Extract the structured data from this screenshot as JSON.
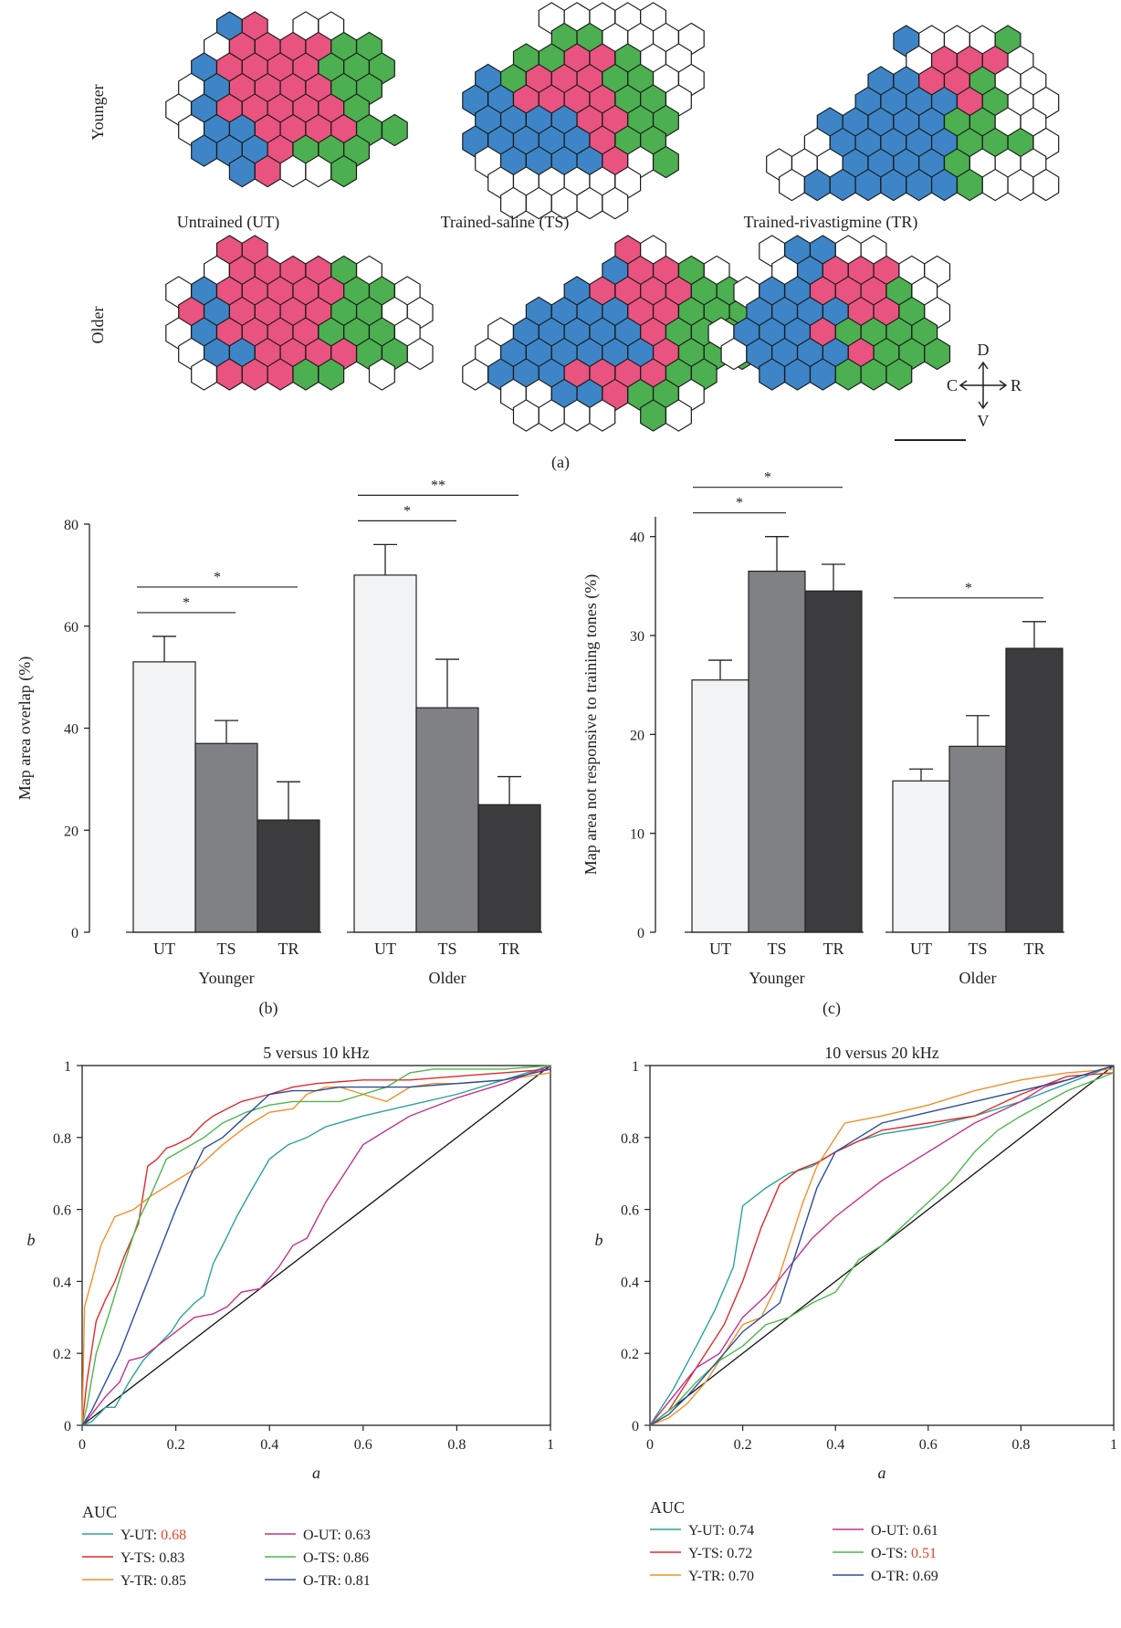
{
  "panel_a": {
    "row_labels": [
      "Younger",
      "Older"
    ],
    "column_labels": [
      "Untrained (UT)",
      "Trained-saline (TS)",
      "Trained-rivastigmine (TR)"
    ],
    "orientation": {
      "up": "D",
      "down": "V",
      "left": "C",
      "right": "R"
    },
    "caption": "(a)",
    "colors": {
      "blue": "#3d85c6",
      "pink": "#e8537f",
      "green": "#4caf50",
      "white": "#ffffff"
    }
  },
  "captions": {
    "b": "(b)",
    "c": "(c)"
  },
  "chart_data": [
    {
      "id": "b",
      "type": "bar",
      "ylabel": "Map area overlap (%)",
      "ylim": [
        0,
        80
      ],
      "yticks": [
        0,
        20,
        40,
        60,
        80
      ],
      "groups": [
        "Younger",
        "Older"
      ],
      "categories": [
        "UT",
        "TS",
        "TR"
      ],
      "colors": [
        "#f2f3f5",
        "#808184",
        "#3c3c3e"
      ],
      "values": [
        [
          53,
          37,
          22
        ],
        [
          70,
          44,
          25
        ]
      ],
      "errors": [
        [
          5,
          4.5,
          7.5
        ],
        [
          6,
          9.5,
          5.5
        ]
      ],
      "significance": [
        {
          "group": 0,
          "from": 0,
          "to": 1,
          "label": "*"
        },
        {
          "group": 0,
          "from": 0,
          "to": 2,
          "label": "*"
        },
        {
          "group": 1,
          "from": 0,
          "to": 1,
          "label": "*"
        },
        {
          "group": 1,
          "from": 0,
          "to": 2,
          "label": "**"
        }
      ]
    },
    {
      "id": "c",
      "type": "bar",
      "ylabel": "Map area not responsive to training tones (%)",
      "ylim": [
        0,
        42
      ],
      "yticks": [
        0,
        10,
        20,
        30,
        40
      ],
      "groups": [
        "Younger",
        "Older"
      ],
      "categories": [
        "UT",
        "TS",
        "TR"
      ],
      "colors": [
        "#f2f3f5",
        "#808184",
        "#3c3c3e"
      ],
      "values": [
        [
          25.5,
          36.5,
          34.5
        ],
        [
          15.3,
          18.8,
          28.7
        ]
      ],
      "errors": [
        [
          2,
          3.5,
          2.7
        ],
        [
          1.2,
          3.1,
          2.7
        ]
      ],
      "significance": [
        {
          "group": 0,
          "from": 0,
          "to": 1,
          "label": "*"
        },
        {
          "group": 0,
          "from": 0,
          "to": 2,
          "label": "*"
        },
        {
          "group": 1,
          "from": 0,
          "to": 2,
          "label": "*"
        }
      ]
    },
    {
      "id": "d",
      "type": "line",
      "title": "5 versus 10 kHz",
      "xlabel": "a",
      "ylabel": "b",
      "xlim": [
        0,
        1
      ],
      "ylim": [
        0,
        1
      ],
      "xticks": [
        "0",
        "0.2",
        "0.4",
        "0.6",
        "0.8",
        "1"
      ],
      "yticks": [
        "0",
        "0.2",
        "0.4",
        "0.6",
        "0.8",
        "1"
      ],
      "legend_title": "AUC",
      "series": [
        {
          "name": "Y-UT",
          "auc": "0.68",
          "auc_color": "#e0442b",
          "color": "#2aa39a",
          "x": [
            0,
            0.02,
            0.05,
            0.07,
            0.1,
            0.13,
            0.16,
            0.19,
            0.21,
            0.24,
            0.26,
            0.28,
            0.3,
            0.33,
            0.36,
            0.4,
            0.44,
            0.48,
            0.52,
            0.6,
            0.7,
            0.8,
            0.9,
            1.0
          ],
          "y": [
            0,
            0.01,
            0.05,
            0.05,
            0.12,
            0.18,
            0.22,
            0.26,
            0.3,
            0.34,
            0.36,
            0.45,
            0.5,
            0.58,
            0.65,
            0.74,
            0.78,
            0.8,
            0.83,
            0.86,
            0.89,
            0.92,
            0.96,
            1.0
          ]
        },
        {
          "name": "Y-TS",
          "color": "#e02b2b",
          "auc": "0.83",
          "x": [
            0,
            0.01,
            0.03,
            0.05,
            0.07,
            0.09,
            0.12,
            0.14,
            0.16,
            0.18,
            0.2,
            0.23,
            0.26,
            0.28,
            0.31,
            0.34,
            0.37,
            0.4,
            0.45,
            0.5,
            0.6,
            0.7,
            0.8,
            0.9,
            1.0
          ],
          "y": [
            0,
            0.12,
            0.29,
            0.35,
            0.4,
            0.47,
            0.56,
            0.72,
            0.74,
            0.77,
            0.78,
            0.8,
            0.84,
            0.86,
            0.88,
            0.9,
            0.91,
            0.92,
            0.94,
            0.95,
            0.96,
            0.96,
            0.97,
            0.98,
            0.99
          ]
        },
        {
          "name": "Y-TR",
          "color": "#f0902a",
          "auc": "0.85",
          "x": [
            0,
            0.005,
            0.02,
            0.04,
            0.07,
            0.11,
            0.15,
            0.2,
            0.25,
            0.3,
            0.35,
            0.4,
            0.45,
            0.48,
            0.52,
            0.55,
            0.6,
            0.65,
            0.7,
            0.75,
            0.8,
            0.9,
            1.0
          ],
          "y": [
            0,
            0.33,
            0.4,
            0.5,
            0.58,
            0.6,
            0.64,
            0.68,
            0.72,
            0.78,
            0.83,
            0.87,
            0.88,
            0.92,
            0.94,
            0.94,
            0.92,
            0.9,
            0.94,
            0.95,
            0.95,
            0.96,
            0.98
          ]
        },
        {
          "name": "O-UT",
          "color": "#c2338c",
          "auc": "0.63",
          "x": [
            0,
            0.02,
            0.05,
            0.08,
            0.1,
            0.13,
            0.16,
            0.2,
            0.24,
            0.28,
            0.31,
            0.34,
            0.38,
            0.42,
            0.45,
            0.48,
            0.52,
            0.56,
            0.6,
            0.65,
            0.7,
            0.8,
            0.9,
            1.0
          ],
          "y": [
            0,
            0.03,
            0.08,
            0.12,
            0.18,
            0.19,
            0.22,
            0.26,
            0.3,
            0.31,
            0.33,
            0.37,
            0.38,
            0.44,
            0.5,
            0.52,
            0.62,
            0.7,
            0.78,
            0.82,
            0.86,
            0.91,
            0.95,
            1.0
          ]
        },
        {
          "name": "O-TS",
          "color": "#4cb84c",
          "auc": "0.86",
          "x": [
            0,
            0.01,
            0.03,
            0.06,
            0.09,
            0.12,
            0.15,
            0.18,
            0.22,
            0.26,
            0.3,
            0.35,
            0.4,
            0.45,
            0.5,
            0.55,
            0.6,
            0.65,
            0.7,
            0.75,
            0.8,
            0.9,
            1.0
          ],
          "y": [
            0,
            0.05,
            0.2,
            0.32,
            0.45,
            0.57,
            0.65,
            0.74,
            0.77,
            0.8,
            0.84,
            0.87,
            0.89,
            0.9,
            0.9,
            0.9,
            0.92,
            0.94,
            0.98,
            0.99,
            0.99,
            0.99,
            1.0
          ]
        },
        {
          "name": "O-TR",
          "color": "#2a4e9c",
          "auc": "0.81",
          "x": [
            0,
            0.02,
            0.05,
            0.08,
            0.11,
            0.14,
            0.17,
            0.2,
            0.23,
            0.26,
            0.3,
            0.35,
            0.4,
            0.45,
            0.5,
            0.55,
            0.6,
            0.7,
            0.8,
            0.9,
            1.0
          ],
          "y": [
            0,
            0.04,
            0.12,
            0.2,
            0.3,
            0.4,
            0.5,
            0.6,
            0.69,
            0.77,
            0.8,
            0.86,
            0.92,
            0.93,
            0.93,
            0.94,
            0.94,
            0.94,
            0.95,
            0.96,
            0.99
          ]
        }
      ]
    },
    {
      "id": "e",
      "type": "line",
      "title": "10 versus 20 kHz",
      "xlabel": "a",
      "ylabel": "b",
      "xlim": [
        0,
        1
      ],
      "ylim": [
        0,
        1
      ],
      "xticks": [
        "0",
        "0.2",
        "0.4",
        "0.6",
        "0.8",
        "1"
      ],
      "yticks": [
        "0",
        "0.2",
        "0.4",
        "0.6",
        "0.8",
        "1"
      ],
      "legend_title": "AUC",
      "series": [
        {
          "name": "Y-UT",
          "color": "#2aa39a",
          "auc": "0.74",
          "x": [
            0,
            0.05,
            0.1,
            0.14,
            0.18,
            0.2,
            0.25,
            0.3,
            0.35,
            0.4,
            0.45,
            0.5,
            0.6,
            0.7,
            0.8,
            0.9,
            1.0
          ],
          "y": [
            0,
            0.1,
            0.22,
            0.32,
            0.44,
            0.61,
            0.66,
            0.7,
            0.72,
            0.76,
            0.79,
            0.81,
            0.83,
            0.86,
            0.9,
            0.95,
            1.0
          ]
        },
        {
          "name": "Y-TS",
          "color": "#e02b2b",
          "auc": "0.72",
          "x": [
            0,
            0.04,
            0.08,
            0.12,
            0.16,
            0.2,
            0.24,
            0.28,
            0.32,
            0.36,
            0.4,
            0.45,
            0.5,
            0.6,
            0.7,
            0.8,
            0.9,
            1.0
          ],
          "y": [
            0,
            0.04,
            0.12,
            0.2,
            0.28,
            0.4,
            0.55,
            0.67,
            0.71,
            0.73,
            0.76,
            0.79,
            0.82,
            0.84,
            0.86,
            0.92,
            0.97,
            0.98
          ]
        },
        {
          "name": "Y-TR",
          "color": "#f0902a",
          "auc": "0.70",
          "x": [
            0,
            0.04,
            0.08,
            0.12,
            0.16,
            0.2,
            0.24,
            0.27,
            0.3,
            0.33,
            0.36,
            0.39,
            0.42,
            0.5,
            0.6,
            0.7,
            0.8,
            0.9,
            1.0
          ],
          "y": [
            0,
            0.02,
            0.06,
            0.12,
            0.2,
            0.28,
            0.3,
            0.38,
            0.5,
            0.62,
            0.72,
            0.78,
            0.84,
            0.86,
            0.89,
            0.93,
            0.96,
            0.98,
            0.99
          ]
        },
        {
          "name": "O-UT",
          "color": "#c2338c",
          "auc": "0.61",
          "x": [
            0,
            0.05,
            0.1,
            0.15,
            0.2,
            0.25,
            0.3,
            0.35,
            0.4,
            0.45,
            0.5,
            0.55,
            0.6,
            0.65,
            0.7,
            0.75,
            0.8,
            0.85,
            0.9,
            0.95,
            1.0
          ],
          "y": [
            0,
            0.08,
            0.16,
            0.2,
            0.3,
            0.36,
            0.44,
            0.52,
            0.58,
            0.63,
            0.68,
            0.72,
            0.76,
            0.8,
            0.84,
            0.87,
            0.9,
            0.94,
            0.96,
            0.98,
            1.0
          ]
        },
        {
          "name": "O-TS",
          "color": "#4cb84c",
          "auc": "0.51",
          "auc_color": "#e0442b",
          "x": [
            0,
            0.05,
            0.1,
            0.15,
            0.2,
            0.25,
            0.3,
            0.35,
            0.4,
            0.45,
            0.5,
            0.55,
            0.6,
            0.65,
            0.7,
            0.75,
            0.8,
            0.9,
            1.0
          ],
          "y": [
            0,
            0.05,
            0.12,
            0.18,
            0.22,
            0.28,
            0.3,
            0.34,
            0.37,
            0.46,
            0.5,
            0.56,
            0.62,
            0.68,
            0.76,
            0.82,
            0.86,
            0.93,
            0.98
          ]
        },
        {
          "name": "O-TR",
          "color": "#2a4e9c",
          "auc": "0.69",
          "x": [
            0,
            0.04,
            0.08,
            0.12,
            0.16,
            0.2,
            0.24,
            0.28,
            0.32,
            0.36,
            0.4,
            0.45,
            0.5,
            0.6,
            0.7,
            0.8,
            0.9,
            1.0
          ],
          "y": [
            0,
            0.03,
            0.08,
            0.14,
            0.2,
            0.26,
            0.3,
            0.34,
            0.5,
            0.66,
            0.76,
            0.8,
            0.84,
            0.87,
            0.9,
            0.93,
            0.96,
            1.0
          ]
        }
      ]
    }
  ]
}
